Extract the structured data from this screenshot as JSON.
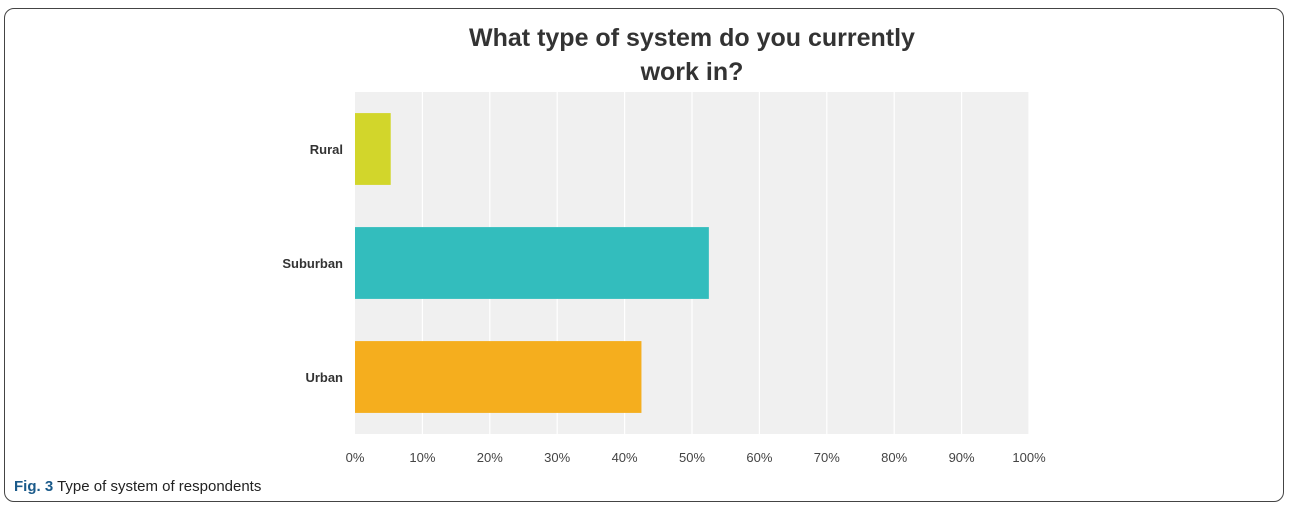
{
  "chart_data": {
    "type": "bar",
    "orientation": "horizontal",
    "title_lines": [
      "What type of system do you currently",
      "work in?"
    ],
    "categories": [
      "Rural",
      "Suburban",
      "Urban"
    ],
    "values": [
      5.3,
      52.5,
      42.5
    ],
    "colors": [
      "#d2d62b",
      "#33bdbd",
      "#f5ae1e"
    ],
    "xlim": [
      0,
      100
    ],
    "xticks": [
      "0%",
      "10%",
      "20%",
      "30%",
      "40%",
      "50%",
      "60%",
      "70%",
      "80%",
      "90%",
      "100%"
    ],
    "grid": true,
    "plot_background": "#f0f0f0"
  },
  "caption": {
    "label": "Fig. 3",
    "text": "Type of system of respondents"
  }
}
